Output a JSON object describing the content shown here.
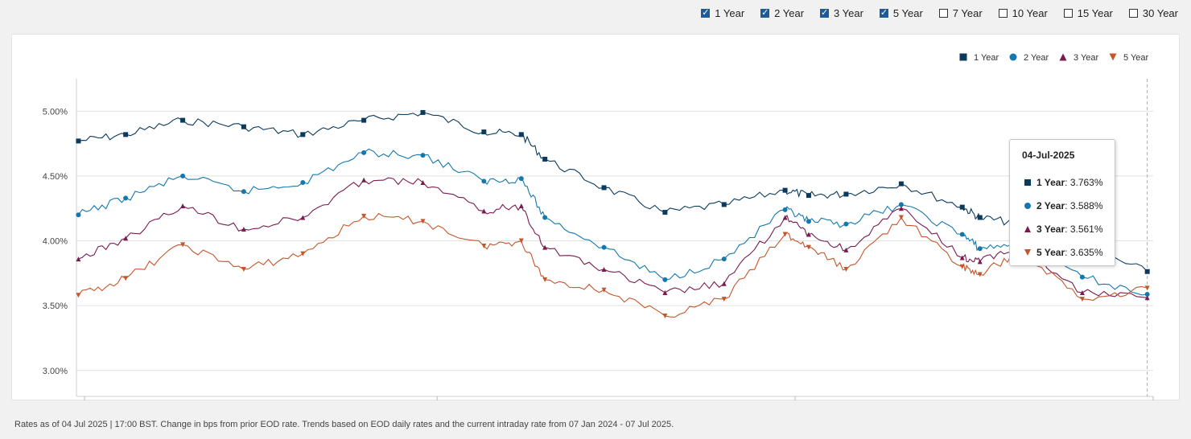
{
  "toggles": [
    {
      "label": "1 Year",
      "checked": true
    },
    {
      "label": "2 Year",
      "checked": true
    },
    {
      "label": "3 Year",
      "checked": true
    },
    {
      "label": "5 Year",
      "checked": true
    },
    {
      "label": "7 Year",
      "checked": false
    },
    {
      "label": "10 Year",
      "checked": false
    },
    {
      "label": "15 Year",
      "checked": false
    },
    {
      "label": "30 Year",
      "checked": false
    }
  ],
  "footer": "Rates as of 04 Jul 2025 | 17:00 BST. Change in bps from prior EOD rate. Trends based on EOD daily rates and the current intraday rate from 07 Jan 2024 - 07 Jul 2025.",
  "tooltip": {
    "date": "04-Jul-2025",
    "rows": [
      {
        "name": "1 Year",
        "value": ": 3.763%",
        "marker": "square",
        "color": "#0b3a5f"
      },
      {
        "name": "2 Year",
        "value": ": 3.588%",
        "marker": "circle",
        "color": "#1478b0"
      },
      {
        "name": "3 Year",
        "value": ": 3.561%",
        "marker": "triangle-up",
        "color": "#7a1a4f"
      },
      {
        "name": "5 Year",
        "value": ": 3.635%",
        "marker": "triangle-down",
        "color": "#c4562b"
      }
    ]
  },
  "chart_data": {
    "type": "line",
    "title": "",
    "xlabel": "",
    "ylabel": "",
    "x_range": [
      "2024-01-07",
      "2025-07-07"
    ],
    "ylim": [
      2.8,
      5.25
    ],
    "yticks": [
      "5.00%",
      "4.50%",
      "4.00%",
      "3.50%",
      "3.00%"
    ],
    "ytick_values": [
      5.0,
      4.5,
      4.0,
      3.5,
      3.0
    ],
    "grid": true,
    "legend_position": "top-right",
    "x": [
      "2024-01-08",
      "2024-02-01",
      "2024-03-01",
      "2024-04-01",
      "2024-05-01",
      "2024-06-01",
      "2024-07-01",
      "2024-08-01",
      "2024-08-20",
      "2024-09-01",
      "2024-10-01",
      "2024-11-01",
      "2024-12-01",
      "2025-01-01",
      "2025-01-13",
      "2025-02-01",
      "2025-03-01",
      "2025-04-01",
      "2025-04-10",
      "2025-05-01",
      "2025-06-01",
      "2025-07-04"
    ],
    "series": [
      {
        "name": "1 Year",
        "color": "#0b3a5f",
        "marker": "square",
        "values": [
          4.77,
          4.82,
          4.93,
          4.88,
          4.82,
          4.93,
          4.99,
          4.84,
          4.82,
          4.63,
          4.41,
          4.22,
          4.28,
          4.39,
          4.35,
          4.36,
          4.44,
          4.26,
          4.18,
          4.13,
          3.95,
          3.763
        ]
      },
      {
        "name": "2 Year",
        "color": "#1478b0",
        "marker": "circle",
        "values": [
          4.2,
          4.33,
          4.5,
          4.38,
          4.45,
          4.68,
          4.66,
          4.46,
          4.48,
          4.18,
          3.95,
          3.7,
          3.86,
          4.24,
          4.15,
          4.13,
          4.28,
          4.05,
          3.94,
          3.98,
          3.72,
          3.588
        ]
      },
      {
        "name": "3 Year",
        "color": "#7a1a4f",
        "marker": "triangle-up",
        "values": [
          3.86,
          4.02,
          4.27,
          4.09,
          4.18,
          4.47,
          4.45,
          4.23,
          4.27,
          3.95,
          3.78,
          3.6,
          3.67,
          4.18,
          4.05,
          3.93,
          4.25,
          3.87,
          3.84,
          3.97,
          3.6,
          3.561
        ]
      },
      {
        "name": "5 Year",
        "color": "#c4562b",
        "marker": "triangle-down",
        "values": [
          3.58,
          3.71,
          3.97,
          3.78,
          3.9,
          4.19,
          4.15,
          3.96,
          4.0,
          3.7,
          3.62,
          3.42,
          3.55,
          4.05,
          3.95,
          3.78,
          4.18,
          3.8,
          3.74,
          3.92,
          3.55,
          3.635
        ]
      }
    ]
  }
}
